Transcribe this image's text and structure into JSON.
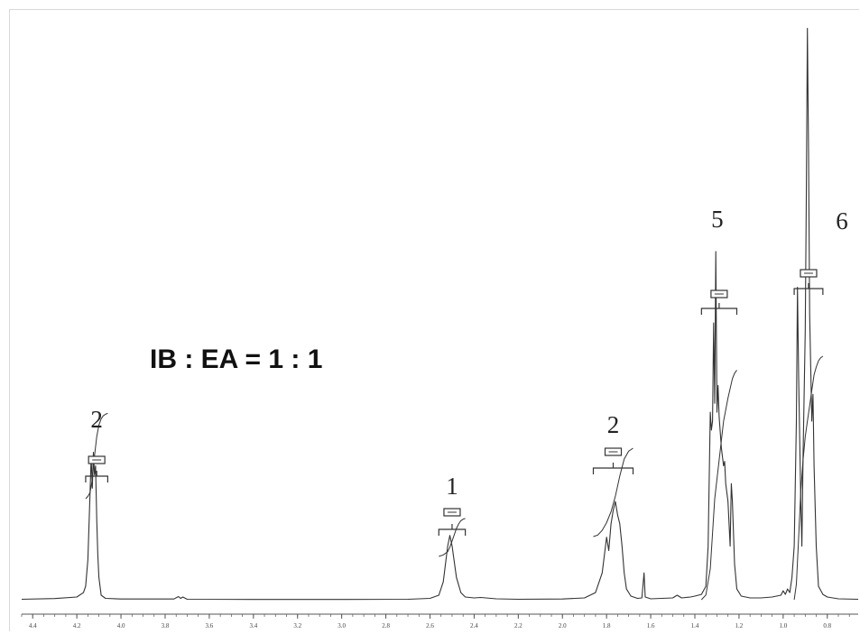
{
  "chart_data": {
    "type": "line",
    "title": "",
    "xlabel": "",
    "ylabel": "",
    "x_reversed": true,
    "xlim": [
      4.45,
      0.66
    ],
    "x_ticks": [
      "4.4",
      "4.2",
      "4.0",
      "3.8",
      "3.6",
      "3.4",
      "3.2",
      "3.0",
      "2.8",
      "2.6",
      "2.4",
      "2.2",
      "2.0",
      "1.8",
      "1.6",
      "1.4",
      "1.2",
      "1.0",
      "0.8"
    ],
    "annotation": "IB : EA = 1 : 1",
    "peaks": [
      {
        "ppm": 4.12,
        "label": "2"
      },
      {
        "ppm": 2.51,
        "label": "1"
      },
      {
        "ppm": 1.76,
        "label": "2"
      },
      {
        "ppm": 1.3,
        "label": "5"
      },
      {
        "ppm": 0.89,
        "label": "6"
      }
    ],
    "integral_ranges": [
      {
        "from": 4.16,
        "to": 4.06,
        "label": "2"
      },
      {
        "from": 2.56,
        "to": 2.44,
        "label": "1"
      },
      {
        "from": 1.86,
        "to": 1.68,
        "label": "2"
      },
      {
        "from": 1.37,
        "to": 1.21,
        "label": "5"
      },
      {
        "from": 0.95,
        "to": 0.82,
        "label": "6"
      }
    ],
    "spectrum": [
      [
        4.45,
        0.5
      ],
      [
        4.3,
        1.3
      ],
      [
        4.2,
        3.0
      ],
      [
        4.17,
        8
      ],
      [
        4.16,
        15
      ],
      [
        4.15,
        45
      ],
      [
        4.14,
        120
      ],
      [
        4.135,
        160
      ],
      [
        4.13,
        125
      ],
      [
        4.125,
        165
      ],
      [
        4.12,
        140
      ],
      [
        4.115,
        150
      ],
      [
        4.11,
        90
      ],
      [
        4.105,
        50
      ],
      [
        4.1,
        25
      ],
      [
        4.09,
        5
      ],
      [
        4.07,
        1.5
      ],
      [
        4.0,
        0.8
      ],
      [
        3.76,
        0.8
      ],
      [
        3.74,
        3.5
      ],
      [
        3.73,
        1.5
      ],
      [
        3.72,
        3.0
      ],
      [
        3.7,
        0.5
      ],
      [
        3.4,
        0.3
      ],
      [
        3.0,
        0.3
      ],
      [
        2.7,
        0.5
      ],
      [
        2.6,
        1.5
      ],
      [
        2.56,
        5
      ],
      [
        2.54,
        20
      ],
      [
        2.52,
        60
      ],
      [
        2.51,
        72
      ],
      [
        2.5,
        60
      ],
      [
        2.48,
        25
      ],
      [
        2.46,
        8
      ],
      [
        2.44,
        3
      ],
      [
        2.4,
        2
      ],
      [
        2.37,
        2.5
      ],
      [
        2.3,
        1
      ],
      [
        2.2,
        0.5
      ],
      [
        2.0,
        0.8
      ],
      [
        1.9,
        2
      ],
      [
        1.85,
        8
      ],
      [
        1.82,
        30
      ],
      [
        1.8,
        70
      ],
      [
        1.79,
        55
      ],
      [
        1.78,
        85
      ],
      [
        1.77,
        100
      ],
      [
        1.76,
        110
      ],
      [
        1.75,
        95
      ],
      [
        1.74,
        85
      ],
      [
        1.73,
        60
      ],
      [
        1.72,
        30
      ],
      [
        1.71,
        12
      ],
      [
        1.69,
        4
      ],
      [
        1.66,
        1.5
      ],
      [
        1.64,
        2
      ],
      [
        1.63,
        30
      ],
      [
        1.625,
        3
      ],
      [
        1.6,
        1
      ],
      [
        1.5,
        2
      ],
      [
        1.48,
        5
      ],
      [
        1.46,
        2
      ],
      [
        1.42,
        3
      ],
      [
        1.4,
        4
      ],
      [
        1.37,
        6
      ],
      [
        1.35,
        15
      ],
      [
        1.34,
        60
      ],
      [
        1.33,
        210
      ],
      [
        1.325,
        190
      ],
      [
        1.32,
        200
      ],
      [
        1.315,
        310
      ],
      [
        1.31,
        220
      ],
      [
        1.305,
        390
      ],
      [
        1.3,
        210
      ],
      [
        1.295,
        240
      ],
      [
        1.29,
        205
      ],
      [
        1.28,
        170
      ],
      [
        1.27,
        150
      ],
      [
        1.265,
        155
      ],
      [
        1.26,
        130
      ],
      [
        1.25,
        110
      ],
      [
        1.24,
        60
      ],
      [
        1.235,
        130
      ],
      [
        1.23,
        110
      ],
      [
        1.22,
        40
      ],
      [
        1.21,
        12
      ],
      [
        1.19,
        4
      ],
      [
        1.15,
        2
      ],
      [
        1.1,
        2
      ],
      [
        1.05,
        3
      ],
      [
        1.01,
        5
      ],
      [
        1.0,
        10
      ],
      [
        0.99,
        6
      ],
      [
        0.98,
        12
      ],
      [
        0.97,
        8
      ],
      [
        0.96,
        25
      ],
      [
        0.95,
        60
      ],
      [
        0.94,
        200
      ],
      [
        0.935,
        350
      ],
      [
        0.93,
        250
      ],
      [
        0.92,
        110
      ],
      [
        0.915,
        60
      ],
      [
        0.91,
        160
      ],
      [
        0.9,
        300
      ],
      [
        0.895,
        450
      ],
      [
        0.89,
        640
      ],
      [
        0.885,
        500
      ],
      [
        0.88,
        320
      ],
      [
        0.875,
        260
      ],
      [
        0.87,
        200
      ],
      [
        0.865,
        230
      ],
      [
        0.86,
        150
      ],
      [
        0.85,
        60
      ],
      [
        0.84,
        15
      ],
      [
        0.82,
        6
      ],
      [
        0.8,
        3
      ],
      [
        0.75,
        1
      ],
      [
        0.66,
        0.5
      ]
    ],
    "integral_curves": [
      {
        "x": [
          4.16,
          4.15,
          4.14,
          4.13,
          4.12,
          4.11,
          4.1,
          4.09,
          4.08,
          4.07,
          4.06
        ],
        "y": [
          0,
          3,
          8,
          25,
          55,
          80,
          95,
          103,
          107,
          109,
          110
        ]
      },
      {
        "x": [
          2.56,
          2.54,
          2.52,
          2.51,
          2.5,
          2.49,
          2.48,
          2.47,
          2.46,
          2.45,
          2.44
        ],
        "y": [
          0,
          2,
          6,
          12,
          20,
          28,
          36,
          42,
          46,
          48,
          49
        ]
      },
      {
        "x": [
          1.86,
          1.84,
          1.82,
          1.8,
          1.78,
          1.76,
          1.74,
          1.72,
          1.7,
          1.68
        ],
        "y": [
          0,
          2,
          8,
          18,
          32,
          52,
          78,
          100,
          110,
          114
        ]
      },
      {
        "x": [
          1.37,
          1.35,
          1.33,
          1.31,
          1.29,
          1.27,
          1.25,
          1.23,
          1.22,
          1.21
        ],
        "y": [
          0,
          6,
          40,
          130,
          180,
          230,
          260,
          285,
          292,
          296
        ]
      },
      {
        "x": [
          0.95,
          0.94,
          0.93,
          0.92,
          0.91,
          0.9,
          0.89,
          0.88,
          0.87,
          0.86,
          0.85,
          0.84,
          0.83,
          0.82
        ],
        "y": [
          0,
          20,
          80,
          140,
          180,
          210,
          230,
          250,
          270,
          290,
          300,
          308,
          312,
          314
        ]
      }
    ],
    "colors": {
      "trace": "#333333",
      "axis": "#555555",
      "frame": "#d8d8d8"
    }
  }
}
